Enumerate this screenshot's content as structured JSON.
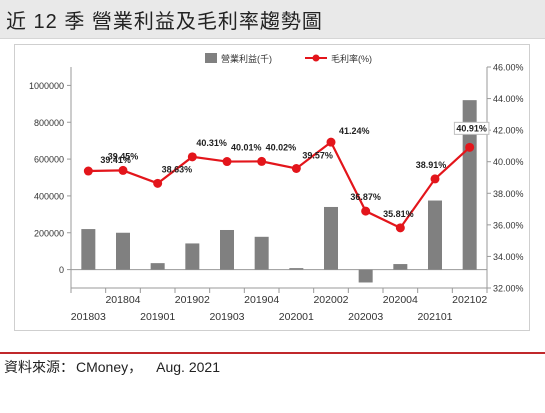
{
  "title": "近 12 季  營業利益及毛利率趨勢圖",
  "source": {
    "label": "資料來源：",
    "value": "CMoney，",
    "date": "Aug. 2021"
  },
  "colors": {
    "bar": "#808080",
    "line": "#e3151b",
    "grid": "#d9d9d9",
    "axis_text": "#333333"
  },
  "chart_data": {
    "type": "bar+line",
    "title": "",
    "legend": {
      "placement": "top",
      "entries": [
        "營業利益(千)",
        "毛利率(%)"
      ]
    },
    "categories": [
      "201803",
      "201804",
      "201901",
      "201902",
      "201903",
      "201904",
      "202001",
      "202002",
      "202003",
      "202004",
      "202101",
      "202102"
    ],
    "series": [
      {
        "name": "營業利益(千)",
        "type": "bar",
        "axis": "left",
        "values": [
          220000,
          200000,
          35000,
          142000,
          215000,
          178000,
          8000,
          340000,
          -70000,
          30000,
          375000,
          920000
        ]
      },
      {
        "name": "毛利率(%)",
        "type": "line",
        "axis": "right",
        "values": [
          39.41,
          39.45,
          38.63,
          40.31,
          40.01,
          40.02,
          39.57,
          41.24,
          36.87,
          35.81,
          38.91,
          40.91
        ],
        "data_labels": [
          "39.41%",
          "39.45%",
          "38.63%",
          "40.31%",
          "40.01%",
          "40.02%",
          "39.57%",
          "41.24%",
          "36.87%",
          "35.81%",
          "38.91%",
          "40.91%"
        ]
      }
    ],
    "y_left": {
      "ylim": [
        -100000,
        1100000
      ],
      "ticks": [
        0,
        200000,
        400000,
        600000,
        800000,
        1000000
      ],
      "tick_labels": [
        "0",
        "200000",
        "400000",
        "600000",
        "800000",
        "1000000"
      ]
    },
    "y_right": {
      "ylim": [
        32,
        46
      ],
      "ticks": [
        32,
        34,
        36,
        38,
        40,
        42,
        44,
        46
      ],
      "tick_labels": [
        "32.00%",
        "34.00%",
        "36.00%",
        "38.00%",
        "40.00%",
        "42.00%",
        "44.00%",
        "46.00%"
      ]
    },
    "grid": false
  }
}
